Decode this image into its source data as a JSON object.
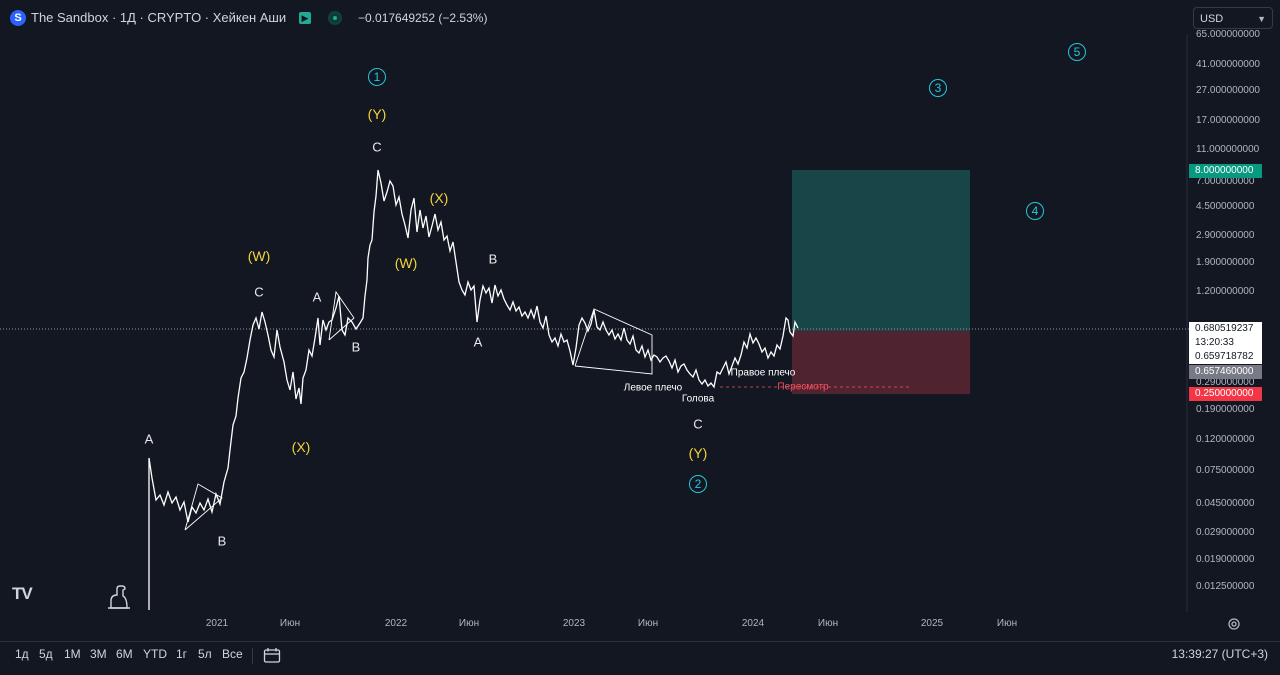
{
  "header": {
    "logo_letter": "S",
    "symbol_title": "The Sandbox · 1Д · CRYPTO · Хейкен Аши",
    "change": "−0.017649252 (−2.53%)",
    "currency": "USD"
  },
  "price_axis": {
    "labels": [
      "65.000000000",
      "41.000000000",
      "27.000000000",
      "17.000000000",
      "11.000000000",
      "7.000000000",
      "4.500000000",
      "2.900000000",
      "1.900000000",
      "1.200000000",
      "0.290000000",
      "0.190000000",
      "0.120000000",
      "0.075000000",
      "0.045000000",
      "0.029000000",
      "0.019000000",
      "0.012500000"
    ],
    "badges": {
      "target": "8.000000000",
      "last_price": "0.680519237",
      "countdown": "13:20:33",
      "prev_close": "0.659718782",
      "entry": "0.657460000",
      "stop": "0.250000000"
    }
  },
  "time_axis": [
    "2021",
    "Июн",
    "2022",
    "Июн",
    "2023",
    "Июн",
    "2024",
    "Июн",
    "2025",
    "Июн"
  ],
  "annotations": {
    "w1_A": "A",
    "w1_B": "B",
    "w1_W": "(W)",
    "w1_C": "C",
    "w2_A": "A",
    "w2_B": "B",
    "w2_X": "(X)",
    "w3_C": "C",
    "w3_Y": "(Y)",
    "w3_W": "(W)",
    "w3_X": "(X)",
    "w4_B": "B",
    "w4_A": "A",
    "w5_C": "C",
    "w5_Y": "(Y)",
    "wave_1": "1",
    "wave_2": "2",
    "wave_3": "3",
    "wave_4": "4",
    "wave_5": "5",
    "left_shoulder": "Левое плечо",
    "head": "Голова",
    "right_shoulder": "Правое плечо",
    "retest": "Пересмотр"
  },
  "timeframes": [
    "1д",
    "5д",
    "1М",
    "3М",
    "6М",
    "YTD",
    "1г",
    "5л",
    "Все"
  ],
  "footer": {
    "clock": "13:39:27 (UTC+3)"
  },
  "brand": {
    "logo": "TV"
  },
  "colors": {
    "background": "#131722",
    "profit_zone": "#1a4d4f",
    "loss_zone": "#5b2631",
    "wave_circle": "#26c6da",
    "wave_label": "#f5d33a",
    "stop_badge": "#f23645",
    "target_badge": "#089981"
  },
  "icons": [
    "flag-icon",
    "status-dot-icon",
    "chevron-down-icon",
    "dino-icon",
    "gear-icon",
    "compare-icon"
  ]
}
